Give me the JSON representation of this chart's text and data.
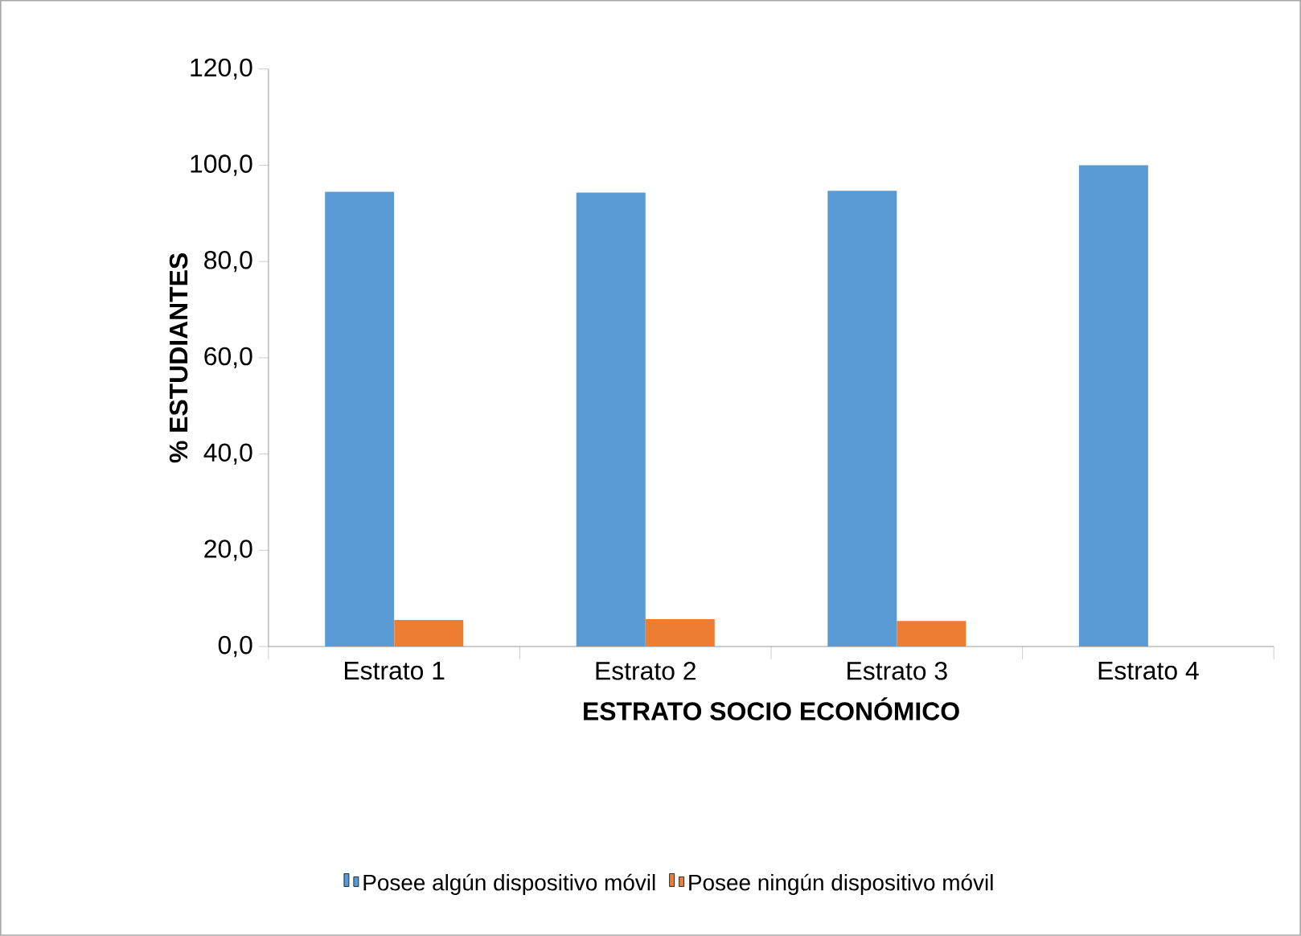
{
  "chart_data": {
    "type": "bar",
    "xlabel": "ESTRATO SOCIO ECONÓMICO",
    "ylabel": "% ESTUDIANTES",
    "categories": [
      "Estrato 1",
      "Estrato 2",
      "Estrato 3",
      "Estrato 4"
    ],
    "series": [
      {
        "name": "Posee algún dispositivo móvil",
        "color": "#5b9bd5",
        "values": [
          94.5,
          94.3,
          94.7,
          100.0
        ]
      },
      {
        "name": "Posee ningún dispositivo móvil",
        "color": "#ed7d31",
        "values": [
          5.5,
          5.7,
          5.3,
          0.0
        ]
      }
    ],
    "ylim": [
      0,
      120
    ],
    "yticks": [
      {
        "value": 0,
        "label": "0,0"
      },
      {
        "value": 20,
        "label": "20,0"
      },
      {
        "value": 40,
        "label": "40,0"
      },
      {
        "value": 60,
        "label": "60,0"
      },
      {
        "value": 80,
        "label": "80,0"
      },
      {
        "value": 100,
        "label": "100,0"
      },
      {
        "value": 120,
        "label": "120,0"
      }
    ],
    "legend": "bottom"
  }
}
